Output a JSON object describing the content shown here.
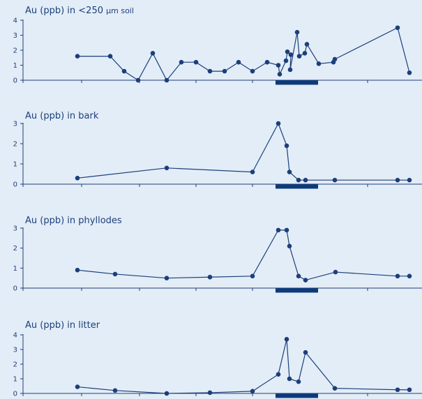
{
  "colors": {
    "background": "#e3edf7",
    "series": "#1c3f7a",
    "bar": "#0d3a7a"
  },
  "chart_data": [
    {
      "type": "line",
      "title_main": "Au (ppb) in <250 ",
      "title_unit": "µm soil",
      "ylim": [
        0,
        4
      ],
      "yticks": [
        "0",
        "1",
        "2",
        "3",
        "4"
      ],
      "xlim": [
        0,
        605
      ],
      "xticks": [
        33,
        117,
        200,
        281,
        362,
        444,
        527
      ],
      "highlight": [
        395,
        456
      ],
      "points": [
        [
          111,
          1.6
        ],
        [
          158,
          1.6
        ],
        [
          178,
          0.6
        ],
        [
          198,
          0.0
        ],
        [
          219,
          1.8
        ],
        [
          239,
          0.0
        ],
        [
          260,
          1.2
        ],
        [
          281,
          1.2
        ],
        [
          301,
          0.6
        ],
        [
          322,
          0.6
        ],
        [
          342,
          1.2
        ],
        [
          362,
          0.6
        ],
        [
          383,
          1.2
        ],
        [
          399,
          1.0
        ],
        [
          401,
          0.4
        ],
        [
          410,
          1.3
        ],
        [
          412,
          1.9
        ],
        [
          417,
          1.7
        ],
        [
          416,
          0.7
        ],
        [
          426,
          3.2
        ],
        [
          429,
          1.6
        ],
        [
          437,
          1.8
        ],
        [
          440,
          2.4
        ],
        [
          457,
          1.1
        ],
        [
          478,
          1.2
        ],
        [
          480,
          1.4
        ],
        [
          570,
          3.5
        ],
        [
          587,
          0.5
        ]
      ]
    },
    {
      "type": "line",
      "title_main": "Au (ppb) in bark",
      "title_unit": "",
      "ylim": [
        0,
        3
      ],
      "yticks": [
        "0",
        "1",
        "2",
        "3"
      ],
      "xlim": [
        0,
        605
      ],
      "xticks": [
        33,
        117,
        200,
        281,
        362,
        444,
        527
      ],
      "highlight": [
        395,
        456
      ],
      "points": [
        [
          111,
          0.3
        ],
        [
          239,
          0.8
        ],
        [
          362,
          0.6
        ],
        [
          399,
          3.0
        ],
        [
          411,
          1.9
        ],
        [
          415,
          0.6
        ],
        [
          428,
          0.2
        ],
        [
          438,
          0.2
        ],
        [
          480,
          0.2
        ],
        [
          570,
          0.2
        ],
        [
          587,
          0.2
        ]
      ]
    },
    {
      "type": "line",
      "title_main": "Au (ppb) in phyllodes",
      "title_unit": "",
      "ylim": [
        0,
        3
      ],
      "yticks": [
        "0",
        "1",
        "2",
        "3"
      ],
      "xlim": [
        0,
        605
      ],
      "xticks": [
        33,
        117,
        200,
        281,
        362,
        444,
        527
      ],
      "highlight": [
        395,
        456
      ],
      "points": [
        [
          111,
          0.9
        ],
        [
          165,
          0.7
        ],
        [
          239,
          0.5
        ],
        [
          301,
          0.55
        ],
        [
          362,
          0.6
        ],
        [
          399,
          2.9
        ],
        [
          411,
          2.9
        ],
        [
          415,
          2.1
        ],
        [
          428,
          0.6
        ],
        [
          438,
          0.4
        ],
        [
          481,
          0.8
        ],
        [
          570,
          0.6
        ],
        [
          587,
          0.6
        ]
      ]
    },
    {
      "type": "line",
      "title_main": "Au (ppb) in litter",
      "title_unit": "",
      "ylim": [
        0,
        4
      ],
      "yticks": [
        "0",
        "1",
        "2",
        "3",
        "4"
      ],
      "xlim": [
        0,
        605
      ],
      "xticks": [
        33,
        117,
        200,
        281,
        362,
        444,
        527
      ],
      "highlight": [
        395,
        456
      ],
      "points": [
        [
          111,
          0.45
        ],
        [
          165,
          0.2
        ],
        [
          239,
          0.0
        ],
        [
          301,
          0.05
        ],
        [
          362,
          0.15
        ],
        [
          399,
          1.3
        ],
        [
          411,
          3.7
        ],
        [
          415,
          1.0
        ],
        [
          428,
          0.8
        ],
        [
          438,
          2.8
        ],
        [
          480,
          0.35
        ],
        [
          570,
          0.25
        ],
        [
          587,
          0.25
        ]
      ]
    }
  ]
}
